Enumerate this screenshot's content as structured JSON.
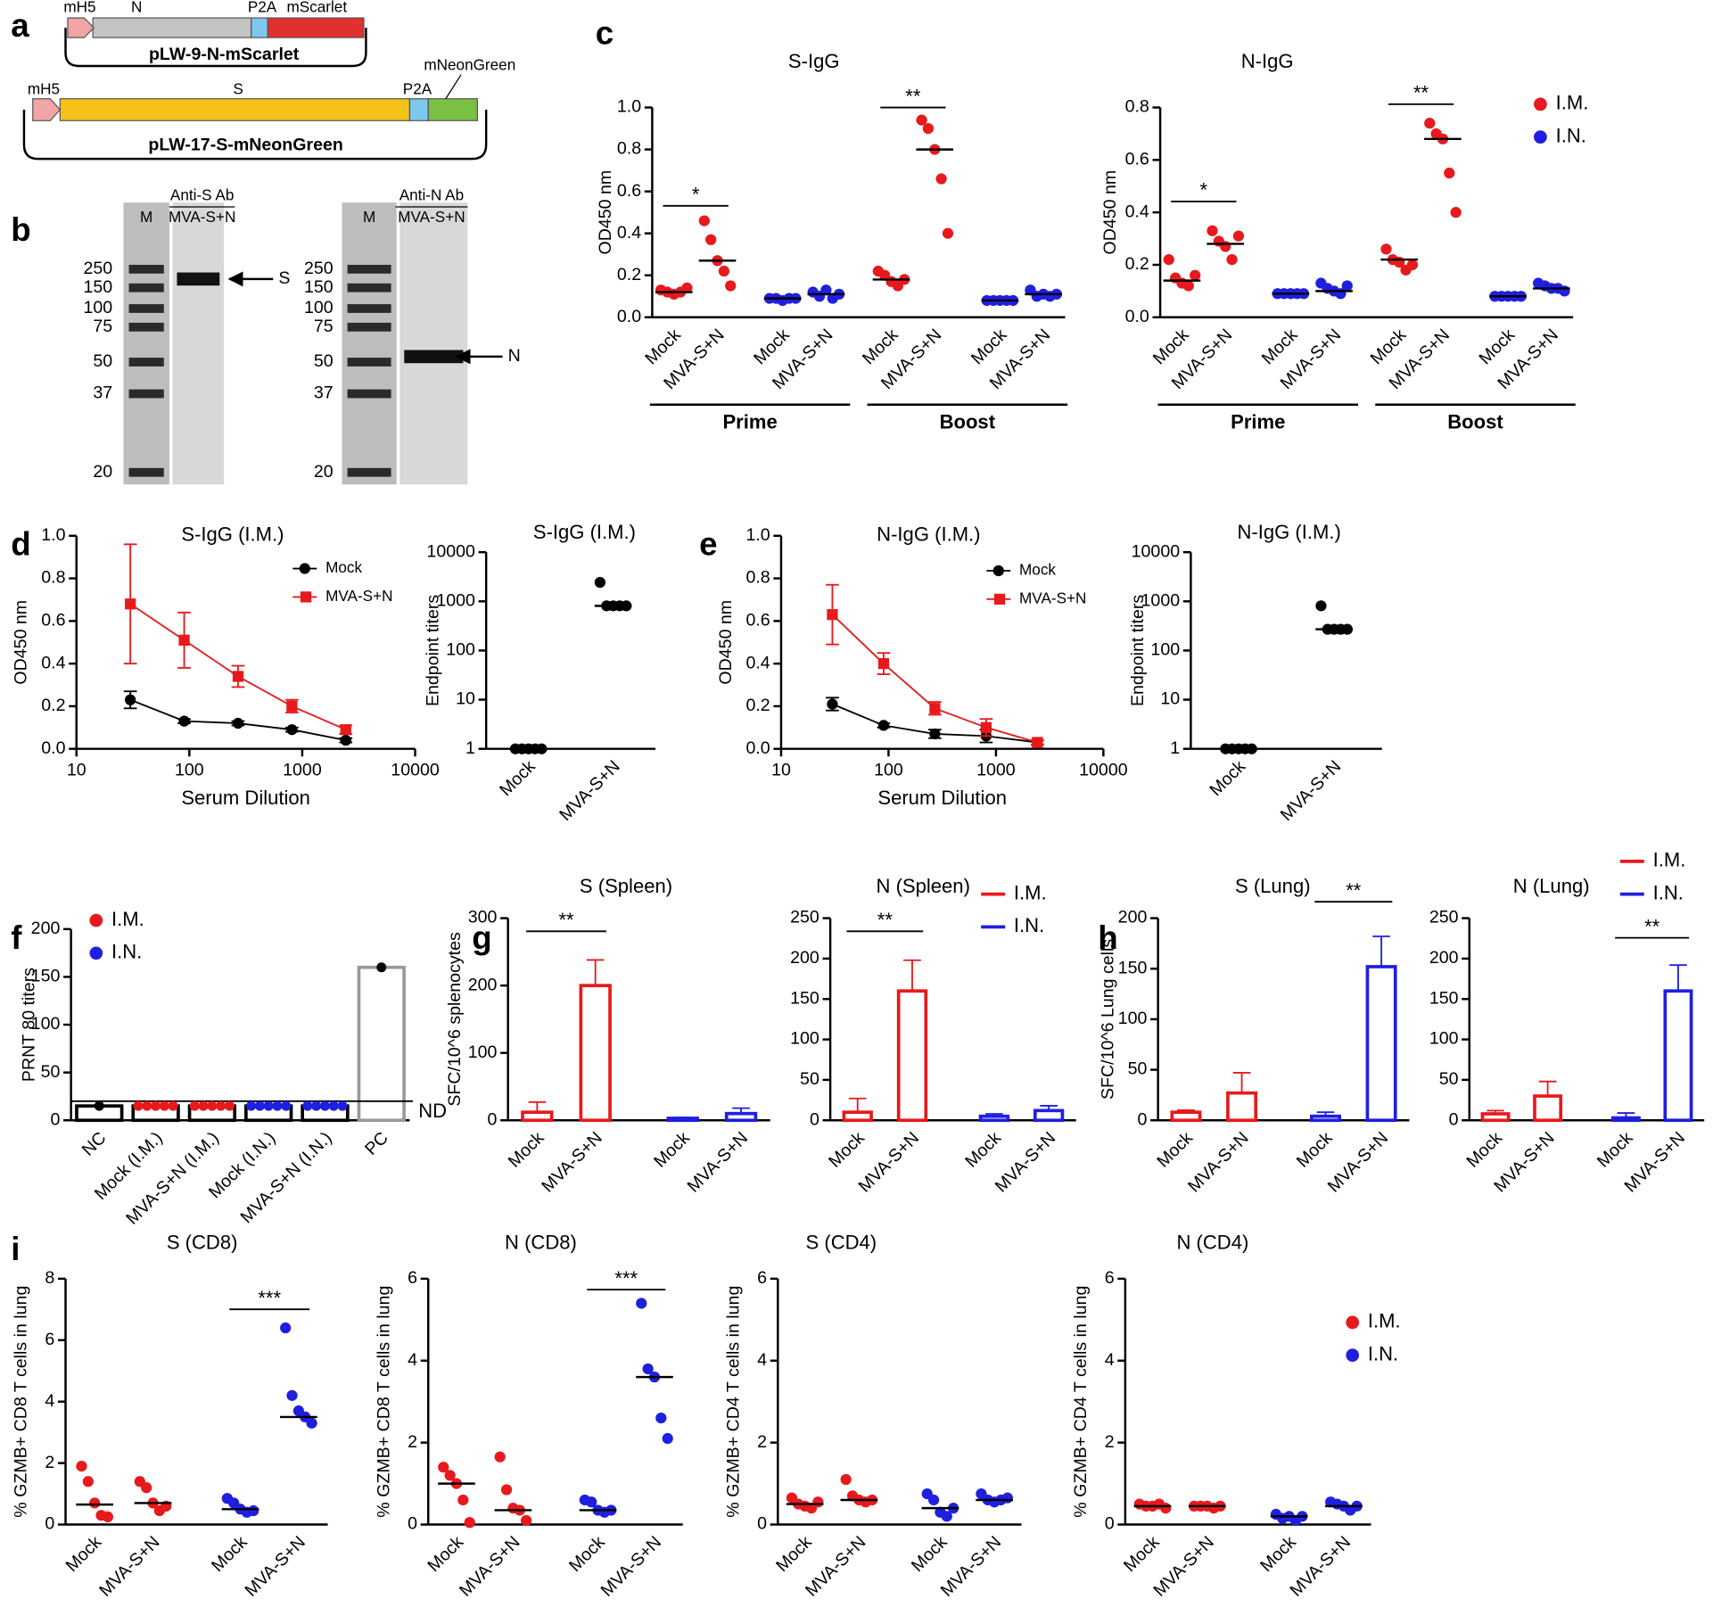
{
  "panel_labels": [
    "a",
    "b",
    "c",
    "d",
    "e",
    "f",
    "g",
    "h",
    "i"
  ],
  "diagram": {
    "plasmids": [
      {
        "name": "pLW-9-N-mScarlet",
        "promoter": "mH5",
        "segments": [
          "N",
          "P2A",
          "mScarlet"
        ]
      },
      {
        "name": "pLW-17-S-mNeonGreen",
        "promoter": "mH5",
        "segments": [
          "S",
          "P2A",
          "mNeonGreen"
        ]
      }
    ]
  },
  "blots": [
    {
      "lane": "M",
      "antibody": "Anti-S Ab",
      "sample": "MVA-S+N",
      "markers": [
        "250",
        "150",
        "100",
        "75",
        "50",
        "37",
        "20"
      ],
      "band": "S"
    },
    {
      "lane": "M",
      "antibody": "Anti-N Ab",
      "sample": "MVA-S+N",
      "markers": [
        "250",
        "150",
        "100",
        "75",
        "50",
        "37",
        "20"
      ],
      "band": "N"
    }
  ],
  "chart_data": [
    {
      "type": "strip",
      "title": "S-IgG",
      "ylabel": "OD450 nm",
      "ylim": [
        0,
        1
      ],
      "yticks": [
        {
          "value": 0,
          "label": "0.0"
        },
        0.2,
        0.4,
        0.6,
        0.8,
        {
          "value": 1,
          "label": "1.0"
        }
      ],
      "categories": [
        "Mock",
        "MVA-S+N",
        "Mock",
        "MVA-S+N",
        "Mock",
        "MVA-S+N",
        "Mock",
        "MVA-S+N"
      ],
      "series": [
        {
          "color": "#e8191c",
          "values": [
            [
              0.13,
              0.12,
              0.11,
              0.12,
              0.14
            ],
            [
              0.46,
              0.37,
              0.27,
              0.22,
              0.15
            ],
            null,
            null,
            [
              0.22,
              0.2,
              0.17,
              0.15,
              0.18
            ],
            [
              0.94,
              0.9,
              0.8,
              0.66,
              0.4
            ],
            null,
            null
          ]
        },
        {
          "color": "#1f1fe0",
          "values": [
            null,
            null,
            [
              0.09,
              0.09,
              0.08,
              0.09,
              0.09
            ],
            [
              0.12,
              0.1,
              0.13,
              0.09,
              0.11
            ],
            null,
            null,
            [
              0.08,
              0.08,
              0.08,
              0.08,
              0.08
            ],
            [
              0.13,
              0.1,
              0.11,
              0.1,
              0.11
            ]
          ]
        }
      ],
      "medians": [
        0.12,
        0.27,
        0.09,
        0.11,
        0.18,
        0.8,
        0.08,
        0.11
      ],
      "groups": [
        "Prime",
        "Boost"
      ],
      "annotations": [
        "*",
        "**"
      ]
    },
    {
      "type": "strip",
      "title": "N-IgG",
      "ylabel": "OD450 nm",
      "ylim": [
        0,
        0.8
      ],
      "yticks": [
        {
          "value": 0,
          "label": "0.0"
        },
        0.2,
        0.4,
        0.6,
        0.8
      ],
      "categories": [
        "Mock",
        "MVA-S+N",
        "Mock",
        "MVA-S+N",
        "Mock",
        "MVA-S+N",
        "Mock",
        "MVA-S+N"
      ],
      "series": [
        {
          "name": "I.M.",
          "color": "#e8191c",
          "values": [
            [
              0.22,
              0.15,
              0.13,
              0.12,
              0.16
            ],
            [
              0.33,
              0.29,
              0.27,
              0.22,
              0.31
            ],
            null,
            null,
            [
              0.26,
              0.22,
              0.21,
              0.18,
              0.2
            ],
            [
              0.74,
              0.7,
              0.68,
              0.55,
              0.4
            ],
            null,
            null
          ]
        },
        {
          "name": "I.N.",
          "color": "#1f1fe0",
          "values": [
            null,
            null,
            [
              0.09,
              0.09,
              0.09,
              0.09,
              0.09
            ],
            [
              0.13,
              0.11,
              0.1,
              0.09,
              0.12
            ],
            null,
            null,
            [
              0.08,
              0.08,
              0.08,
              0.08,
              0.08
            ],
            [
              0.13,
              0.12,
              0.11,
              0.11,
              0.1
            ]
          ]
        }
      ],
      "medians": [
        0.14,
        0.28,
        0.09,
        0.1,
        0.22,
        0.68,
        0.08,
        0.11
      ],
      "groups": [
        "Prime",
        "Boost"
      ],
      "annotations": [
        "*",
        "**"
      ]
    },
    {
      "type": "line",
      "title": "S-IgG (I.M.)",
      "xlabel": "Serum Dilution",
      "ylabel": "OD450 nm",
      "xlog": true,
      "xlim": [
        10,
        10000
      ],
      "xticks": [
        10,
        100,
        1000,
        10000
      ],
      "ylim": [
        0,
        1
      ],
      "yticks": [
        {
          "value": 0,
          "label": "0.0"
        },
        0.2,
        0.4,
        0.6,
        0.8,
        {
          "value": 1,
          "label": "1.0"
        }
      ],
      "x": [
        30,
        90,
        270,
        810,
        2430
      ],
      "series": [
        {
          "name": "Mock",
          "color": "#000000",
          "marker": "circle",
          "values": [
            0.23,
            0.13,
            0.12,
            0.09,
            0.04
          ],
          "errors": [
            0.04,
            0.01,
            0.01,
            0.01,
            0.01
          ]
        },
        {
          "name": "MVA-S+N",
          "color": "#e8191c",
          "marker": "square",
          "values": [
            0.68,
            0.51,
            0.34,
            0.2,
            0.09
          ],
          "errors": [
            0.28,
            0.13,
            0.05,
            0.03,
            0.02
          ]
        }
      ]
    },
    {
      "type": "strip",
      "title": "S-IgG (I.M.)",
      "ylabel": "Endpoint titers",
      "ylog": true,
      "ylim": [
        1,
        10000
      ],
      "yticks": [
        1,
        10,
        100,
        1000,
        10000
      ],
      "categories": [
        "Mock",
        "MVA-S+N"
      ],
      "series": [
        {
          "color": "#000000",
          "values": [
            [
              1,
              1,
              1,
              1,
              1
            ],
            [
              2430,
              810,
              810,
              810,
              810
            ]
          ]
        }
      ],
      "medians": [
        1,
        810
      ]
    },
    {
      "type": "line",
      "title": "N-IgG (I.M.)",
      "xlabel": "Serum Dilution",
      "ylabel": "OD450 nm",
      "xlog": true,
      "xlim": [
        10,
        10000
      ],
      "xticks": [
        10,
        100,
        1000,
        10000
      ],
      "ylim": [
        0,
        1
      ],
      "yticks": [
        {
          "value": 0,
          "label": "0.0"
        },
        0.2,
        0.4,
        0.6,
        0.8,
        {
          "value": 1,
          "label": "1.0"
        }
      ],
      "x": [
        30,
        90,
        270,
        810,
        2430
      ],
      "series": [
        {
          "name": "Mock",
          "color": "#000000",
          "marker": "circle",
          "values": [
            0.21,
            0.11,
            0.07,
            0.06,
            0.03
          ],
          "errors": [
            0.03,
            0.01,
            0.02,
            0.03,
            0.01
          ]
        },
        {
          "name": "MVA-S+N",
          "color": "#e8191c",
          "marker": "square",
          "values": [
            0.63,
            0.4,
            0.19,
            0.1,
            0.03
          ],
          "errors": [
            0.14,
            0.05,
            0.03,
            0.04,
            0.01
          ]
        }
      ]
    },
    {
      "type": "strip",
      "title": "N-IgG (I.M.)",
      "ylabel": "Endpoint titers",
      "ylog": true,
      "ylim": [
        1,
        10000
      ],
      "yticks": [
        1,
        10,
        100,
        1000,
        10000
      ],
      "categories": [
        "Mock",
        "MVA-S+N"
      ],
      "series": [
        {
          "color": "#000000",
          "values": [
            [
              1,
              1,
              1,
              1,
              1
            ],
            [
              810,
              270,
              270,
              270,
              270
            ]
          ]
        }
      ],
      "medians": [
        1,
        270
      ]
    },
    {
      "type": "bar",
      "ylabel": "PRNT 80 titers",
      "ylim": [
        0,
        200
      ],
      "yticks": [
        0,
        50,
        100,
        150,
        200
      ],
      "categories": [
        "NC",
        "Mock (I.M.)",
        "MVA-S+N (I.M.)",
        "Mock (I.N.)",
        "MVA-S+N (I.N.)",
        "PC"
      ],
      "values": [
        15,
        15,
        15,
        15,
        15,
        160
      ],
      "colors": [
        "#000000",
        "#000000",
        "#000000",
        "#000000",
        "#000000",
        "#999999"
      ],
      "points": [
        [
          15
        ],
        [
          15,
          15,
          15,
          15,
          15
        ],
        [
          15,
          15,
          15,
          15,
          15
        ],
        [
          15,
          15,
          15,
          15,
          15
        ],
        [
          15,
          15,
          15,
          15,
          15
        ],
        [
          160
        ]
      ],
      "point_colors": [
        "#000000",
        "#e8191c",
        "#e8191c",
        "#1f1fe0",
        "#1f1fe0",
        "#000000"
      ],
      "reference_line": {
        "value": 20,
        "label": "ND"
      },
      "legend": [
        {
          "name": "I.M.",
          "color": "#e8191c"
        },
        {
          "name": "I.N.",
          "color": "#1f1fe0"
        }
      ]
    },
    {
      "type": "bar",
      "title": "S (Spleen)",
      "ylabel": "SFC/10^6 splenocytes",
      "ylim": [
        0,
        300
      ],
      "yticks": [
        0,
        100,
        200,
        300
      ],
      "categories": [
        "Mock",
        "MVA-S+N",
        "Mock",
        "MVA-S+N"
      ],
      "values": [
        12,
        200,
        3,
        10
      ],
      "errors": [
        15,
        38,
        1,
        8
      ],
      "colors": [
        "#e8191c",
        "#e8191c",
        "#1f1fe0",
        "#1f1fe0"
      ],
      "annotations": [
        "**"
      ]
    },
    {
      "type": "bar",
      "title": "N (Spleen)",
      "ylim": [
        0,
        250
      ],
      "yticks": [
        0,
        50,
        100,
        150,
        200,
        250
      ],
      "categories": [
        "Mock",
        "MVA-S+N",
        "Mock",
        "MVA-S+N"
      ],
      "values": [
        10,
        160,
        5,
        12
      ],
      "errors": [
        17,
        38,
        3,
        6
      ],
      "colors": [
        "#e8191c",
        "#e8191c",
        "#1f1fe0",
        "#1f1fe0"
      ],
      "annotations": [
        "**"
      ],
      "legend": [
        {
          "name": "I.M.",
          "color": "#e8191c"
        },
        {
          "name": "I.N.",
          "color": "#1f1fe0"
        }
      ]
    },
    {
      "type": "bar",
      "title": "S (Lung)",
      "ylabel": "SFC/10^6 Lung cells",
      "ylim": [
        0,
        200
      ],
      "yticks": [
        0,
        50,
        100,
        150,
        200
      ],
      "categories": [
        "Mock",
        "MVA-S+N",
        "Mock",
        "MVA-S+N"
      ],
      "values": [
        8,
        27,
        4,
        152
      ],
      "errors": [
        2,
        20,
        4,
        30
      ],
      "colors": [
        "#e8191c",
        "#e8191c",
        "#1f1fe0",
        "#1f1fe0"
      ],
      "annotations": [
        "**"
      ]
    },
    {
      "type": "bar",
      "title": "N (Lung)",
      "ylim": [
        0,
        250
      ],
      "yticks": [
        0,
        50,
        100,
        150,
        200,
        250
      ],
      "categories": [
        "Mock",
        "MVA-S+N",
        "Mock",
        "MVA-S+N"
      ],
      "values": [
        8,
        30,
        3,
        160
      ],
      "errors": [
        4,
        18,
        6,
        32
      ],
      "colors": [
        "#e8191c",
        "#e8191c",
        "#1f1fe0",
        "#1f1fe0"
      ],
      "annotations": [
        "**"
      ],
      "legend": [
        {
          "name": "I.M.",
          "color": "#e8191c"
        },
        {
          "name": "I.N.",
          "color": "#1f1fe0"
        }
      ]
    },
    {
      "type": "strip",
      "title": "S (CD8)",
      "ylabel": "% GZMB+ CD8 T cells in lung",
      "ylim": [
        0,
        8
      ],
      "yticks": [
        0,
        2,
        4,
        6,
        8
      ],
      "categories": [
        "Mock",
        "MVA-S+N",
        "Mock",
        "MVA-S+N"
      ],
      "series": [
        {
          "color": "#e8191c",
          "values": [
            [
              1.9,
              1.4,
              0.7,
              0.3,
              0.25
            ],
            [
              1.4,
              1.2,
              0.7,
              0.45,
              0.6
            ],
            null,
            null
          ]
        },
        {
          "color": "#1f1fe0",
          "values": [
            null,
            null,
            [
              0.85,
              0.7,
              0.5,
              0.4,
              0.45
            ],
            [
              6.4,
              4.2,
              3.7,
              3.5,
              3.3
            ]
          ]
        }
      ],
      "medians": [
        0.65,
        0.7,
        0.5,
        3.5
      ],
      "annotations": [
        "***"
      ]
    },
    {
      "type": "strip",
      "title": "N (CD8)",
      "ylabel": "% GZMB+ CD8 T cells in lung",
      "ylim": [
        0,
        6
      ],
      "yticks": [
        0,
        2,
        4,
        6
      ],
      "categories": [
        "Mock",
        "MVA-S+N",
        "Mock",
        "MVA-S+N"
      ],
      "series": [
        {
          "color": "#e8191c",
          "values": [
            [
              1.4,
              1.2,
              1,
              0.6,
              0.05
            ],
            [
              1.65,
              0.85,
              0.4,
              0.35,
              0.1
            ],
            null,
            null
          ]
        },
        {
          "color": "#1f1fe0",
          "values": [
            null,
            null,
            [
              0.6,
              0.55,
              0.35,
              0.3,
              0.35
            ],
            [
              5.4,
              3.8,
              3.6,
              2.6,
              2.1
            ]
          ]
        }
      ],
      "medians": [
        1,
        0.35,
        0.35,
        3.6
      ],
      "annotations": [
        "***"
      ]
    },
    {
      "type": "strip",
      "title": "S (CD4)",
      "ylabel": "% GZMB+ CD4 T cells in lung",
      "ylim": [
        0,
        6
      ],
      "yticks": [
        0,
        2,
        4,
        6
      ],
      "categories": [
        "Mock",
        "MVA-S+N",
        "Mock",
        "MVA-S+N"
      ],
      "series": [
        {
          "color": "#e8191c",
          "values": [
            [
              0.65,
              0.5,
              0.45,
              0.4,
              0.55
            ],
            [
              1.1,
              0.7,
              0.6,
              0.55,
              0.6
            ],
            null,
            null
          ]
        },
        {
          "color": "#1f1fe0",
          "values": [
            null,
            null,
            [
              0.75,
              0.6,
              0.3,
              0.2,
              0.4
            ],
            [
              0.75,
              0.6,
              0.55,
              0.6,
              0.65
            ]
          ]
        }
      ],
      "medians": [
        0.5,
        0.6,
        0.4,
        0.6
      ]
    },
    {
      "type": "strip",
      "title": "N (CD4)",
      "ylabel": "% GZMB+ CD4 T cells in lung",
      "ylim": [
        0,
        6
      ],
      "yticks": [
        0,
        2,
        4,
        6
      ],
      "categories": [
        "Mock",
        "MVA-S+N",
        "Mock",
        "MVA-S+N"
      ],
      "series": [
        {
          "name": "I.M.",
          "color": "#e8191c",
          "values": [
            [
              0.5,
              0.45,
              0.45,
              0.5,
              0.4
            ],
            [
              0.45,
              0.45,
              0.45,
              0.4,
              0.45
            ],
            null,
            null
          ]
        },
        {
          "name": "I.N.",
          "color": "#1f1fe0",
          "values": [
            null,
            null,
            [
              0.25,
              0.15,
              0.2,
              0.1,
              0.2
            ],
            [
              0.55,
              0.5,
              0.45,
              0.35,
              0.45
            ]
          ]
        }
      ],
      "medians": [
        0.45,
        0.45,
        0.2,
        0.45
      ]
    }
  ]
}
